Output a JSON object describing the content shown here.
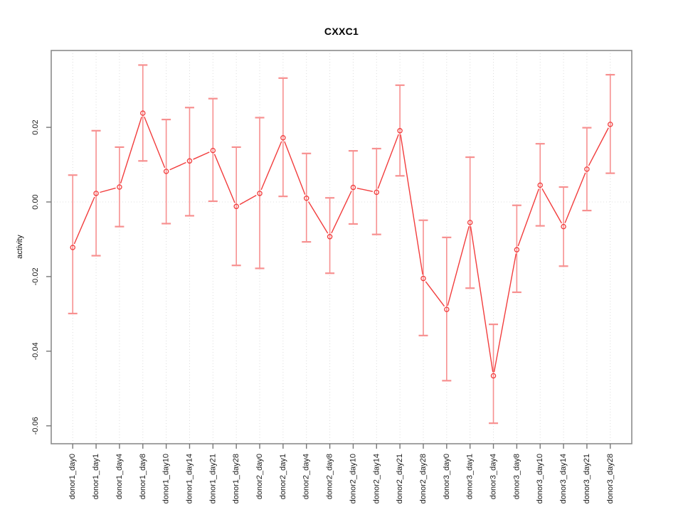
{
  "chart_data": {
    "type": "line",
    "subtype": "points-with-error-bars",
    "title": "CXXC1",
    "xlabel": "",
    "ylabel": "activity",
    "legend": "none",
    "categories": [
      "donor1_day0",
      "donor1_day1",
      "donor1_day4",
      "donor1_day8",
      "donor1_day10",
      "donor1_day14",
      "donor1_day21",
      "donor1_day28",
      "donor2_day0",
      "donor2_day1",
      "donor2_day4",
      "donor2_day8",
      "donor2_day10",
      "donor2_day14",
      "donor2_day21",
      "donor2_day28",
      "donor3_day0",
      "donor3_day1",
      "donor3_day4",
      "donor3_day8",
      "donor3_day10",
      "donor3_day14",
      "donor3_day21",
      "donor3_day28"
    ],
    "values": [
      -0.0122,
      0.0023,
      0.004,
      0.0238,
      0.0082,
      0.011,
      0.0138,
      -0.0012,
      0.0023,
      0.0172,
      0.001,
      -0.0093,
      0.0039,
      0.0026,
      0.0191,
      -0.0205,
      -0.0288,
      -0.0055,
      -0.0466,
      -0.0128,
      0.0045,
      -0.0066,
      0.0088,
      0.0208
    ],
    "error_high": [
      0.0072,
      0.0191,
      0.0147,
      0.0367,
      0.0221,
      0.0253,
      0.0277,
      0.0147,
      0.0226,
      0.0332,
      0.013,
      0.0011,
      0.0137,
      0.0143,
      0.0313,
      -0.0049,
      -0.0095,
      0.012,
      -0.0328,
      -0.0009,
      0.0156,
      0.004,
      0.0199,
      0.0341
    ],
    "error_low": [
      -0.0299,
      -0.0144,
      -0.0066,
      0.011,
      -0.0058,
      -0.0037,
      0.0002,
      -0.017,
      -0.0178,
      0.0015,
      -0.0107,
      -0.0191,
      -0.0059,
      -0.0087,
      0.007,
      -0.0358,
      -0.0479,
      -0.0231,
      -0.0593,
      -0.0242,
      -0.0064,
      -0.0172,
      -0.0023,
      0.0077
    ],
    "ytick_labels": [
      "0.02",
      "0.00",
      "-0.02",
      "-0.04",
      "-0.06"
    ],
    "ytick_values": [
      0.02,
      0,
      -0.02,
      -0.04,
      -0.06
    ],
    "ylim": [
      -0.0648,
      0.0406
    ],
    "grid": {
      "vertical": "dotted line at every category",
      "horizontal": "dotted line at y=0 only"
    },
    "colors": {
      "series_line": "#f23d3d",
      "marker_stroke": "#f23d3d",
      "error_bar": "#f79090",
      "grid_line": "#dcdcdc",
      "zero_line": "#e2e2e2",
      "axis_box": "#8c8c8c",
      "tick": "#777777",
      "text": "#1a1a1a"
    }
  }
}
